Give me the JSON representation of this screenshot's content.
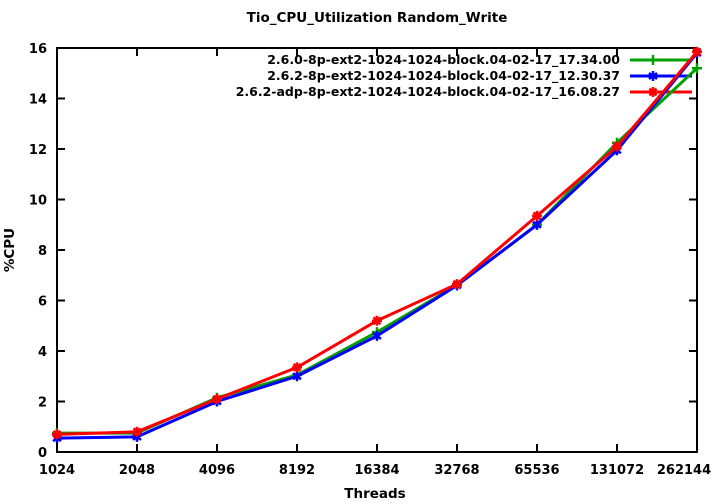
{
  "chart_data": {
    "type": "line",
    "title": "Tio_CPU_Utilization Random_Write",
    "xlabel": "Threads",
    "ylabel": "%CPU",
    "x_categories": [
      "1024",
      "2048",
      "4096",
      "8192",
      "16384",
      "32768",
      "65536",
      "131072",
      "262144"
    ],
    "ylim": [
      0,
      16
    ],
    "ytick_step": 2,
    "grid": false,
    "legend_position": "top-right-inside",
    "axis_color": "#000000",
    "background_color": "#ffffff",
    "series": [
      {
        "name": "2.6.0-8p-ext2-1024-1024-block.04-02-17_17.34.00",
        "color": "#00A000",
        "marker": "plus",
        "values": [
          0.75,
          0.75,
          2.15,
          3.05,
          4.75,
          6.6,
          9.0,
          12.25,
          15.2
        ]
      },
      {
        "name": "2.6.2-8p-ext2-1024-1024-block.04-02-17_12.30.37",
        "color": "#0000FF",
        "marker": "asterisk",
        "values": [
          0.55,
          0.6,
          2.0,
          3.0,
          4.6,
          6.6,
          9.0,
          11.95,
          15.8
        ]
      },
      {
        "name": "2.6.2-adp-8p-ext2-1024-1024-block.04-02-17_16.08.27",
        "color": "#FF0000",
        "marker": "star",
        "values": [
          0.7,
          0.8,
          2.1,
          3.35,
          5.2,
          6.65,
          9.35,
          12.1,
          15.85
        ]
      }
    ]
  }
}
